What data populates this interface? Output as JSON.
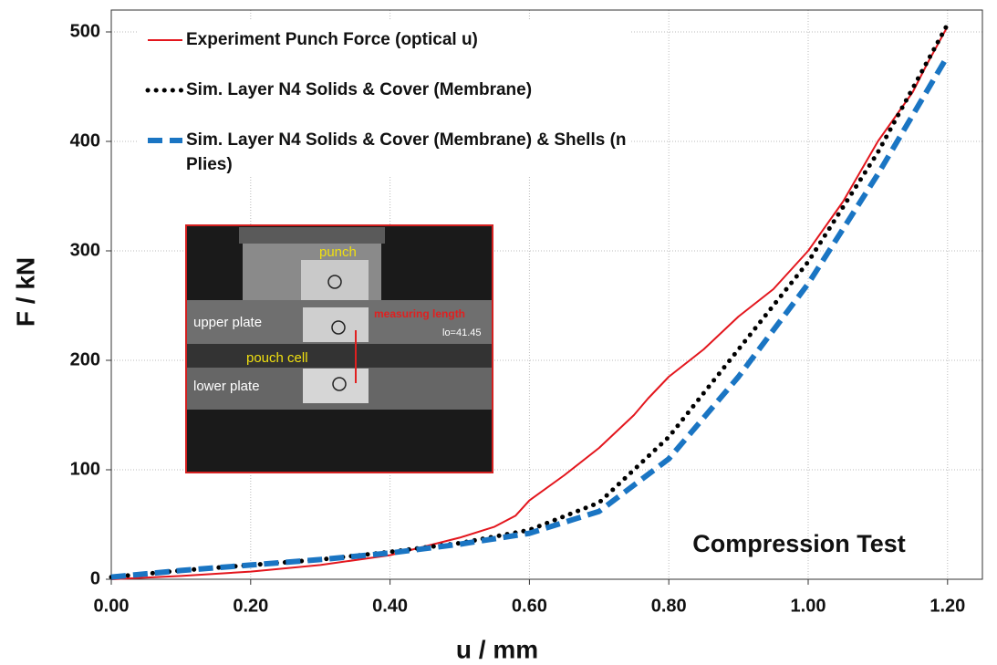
{
  "chart_data": {
    "type": "line",
    "xlabel": "u / mm",
    "ylabel": "F / kN",
    "annotations": [
      "Compression Test",
      "punch",
      "upper plate",
      "measuring length",
      "lo=41.45",
      "pouch cell",
      "lower plate"
    ],
    "xlim": [
      0,
      1.25
    ],
    "ylim": [
      0,
      520
    ],
    "xticks": [
      {
        "value": 0,
        "label": "0.00"
      },
      {
        "value": 0.2,
        "label": "0.20"
      },
      {
        "value": 0.4,
        "label": "0.40"
      },
      {
        "value": 0.6,
        "label": "0.60"
      },
      {
        "value": 0.8,
        "label": "0.80"
      },
      {
        "value": 1.0,
        "label": "1.00"
      },
      {
        "value": 1.2,
        "label": "1.20"
      }
    ],
    "yticks": [
      0,
      100,
      200,
      300,
      400,
      500
    ],
    "grid": true,
    "legend": "upper left",
    "series": [
      {
        "name": "Experiment Punch Force (optical u)",
        "color": "#e3161d",
        "style": "solid",
        "x": [
          0,
          0.1,
          0.2,
          0.3,
          0.4,
          0.5,
          0.55,
          0.58,
          0.6,
          0.65,
          0.7,
          0.75,
          0.77,
          0.8,
          0.85,
          0.9,
          0.95,
          1.0,
          1.05,
          1.1,
          1.15,
          1.17,
          1.2
        ],
        "values": [
          0,
          3,
          7,
          13,
          22,
          38,
          48,
          58,
          72,
          95,
          120,
          150,
          165,
          185,
          210,
          240,
          265,
          300,
          345,
          400,
          445,
          470,
          505
        ]
      },
      {
        "name": "Sim. Layer N4 Solids & Cover (Membrane)",
        "color": "#000000",
        "style": "dotted",
        "x": [
          0,
          0.1,
          0.2,
          0.3,
          0.4,
          0.5,
          0.6,
          0.7,
          0.8,
          0.9,
          1.0,
          1.1,
          1.2
        ],
        "values": [
          2,
          8,
          13,
          18,
          25,
          33,
          45,
          70,
          130,
          210,
          290,
          390,
          507
        ]
      },
      {
        "name": "Sim. Layer N4 Solids & Cover (Membrane) & Shells (n Plies)",
        "color": "#1a75c3",
        "style": "dashed",
        "x": [
          0,
          0.1,
          0.2,
          0.3,
          0.4,
          0.5,
          0.6,
          0.7,
          0.8,
          0.9,
          1.0,
          1.1,
          1.2
        ],
        "values": [
          2,
          8,
          13,
          18,
          24,
          32,
          42,
          62,
          110,
          185,
          270,
          370,
          478
        ]
      }
    ]
  }
}
